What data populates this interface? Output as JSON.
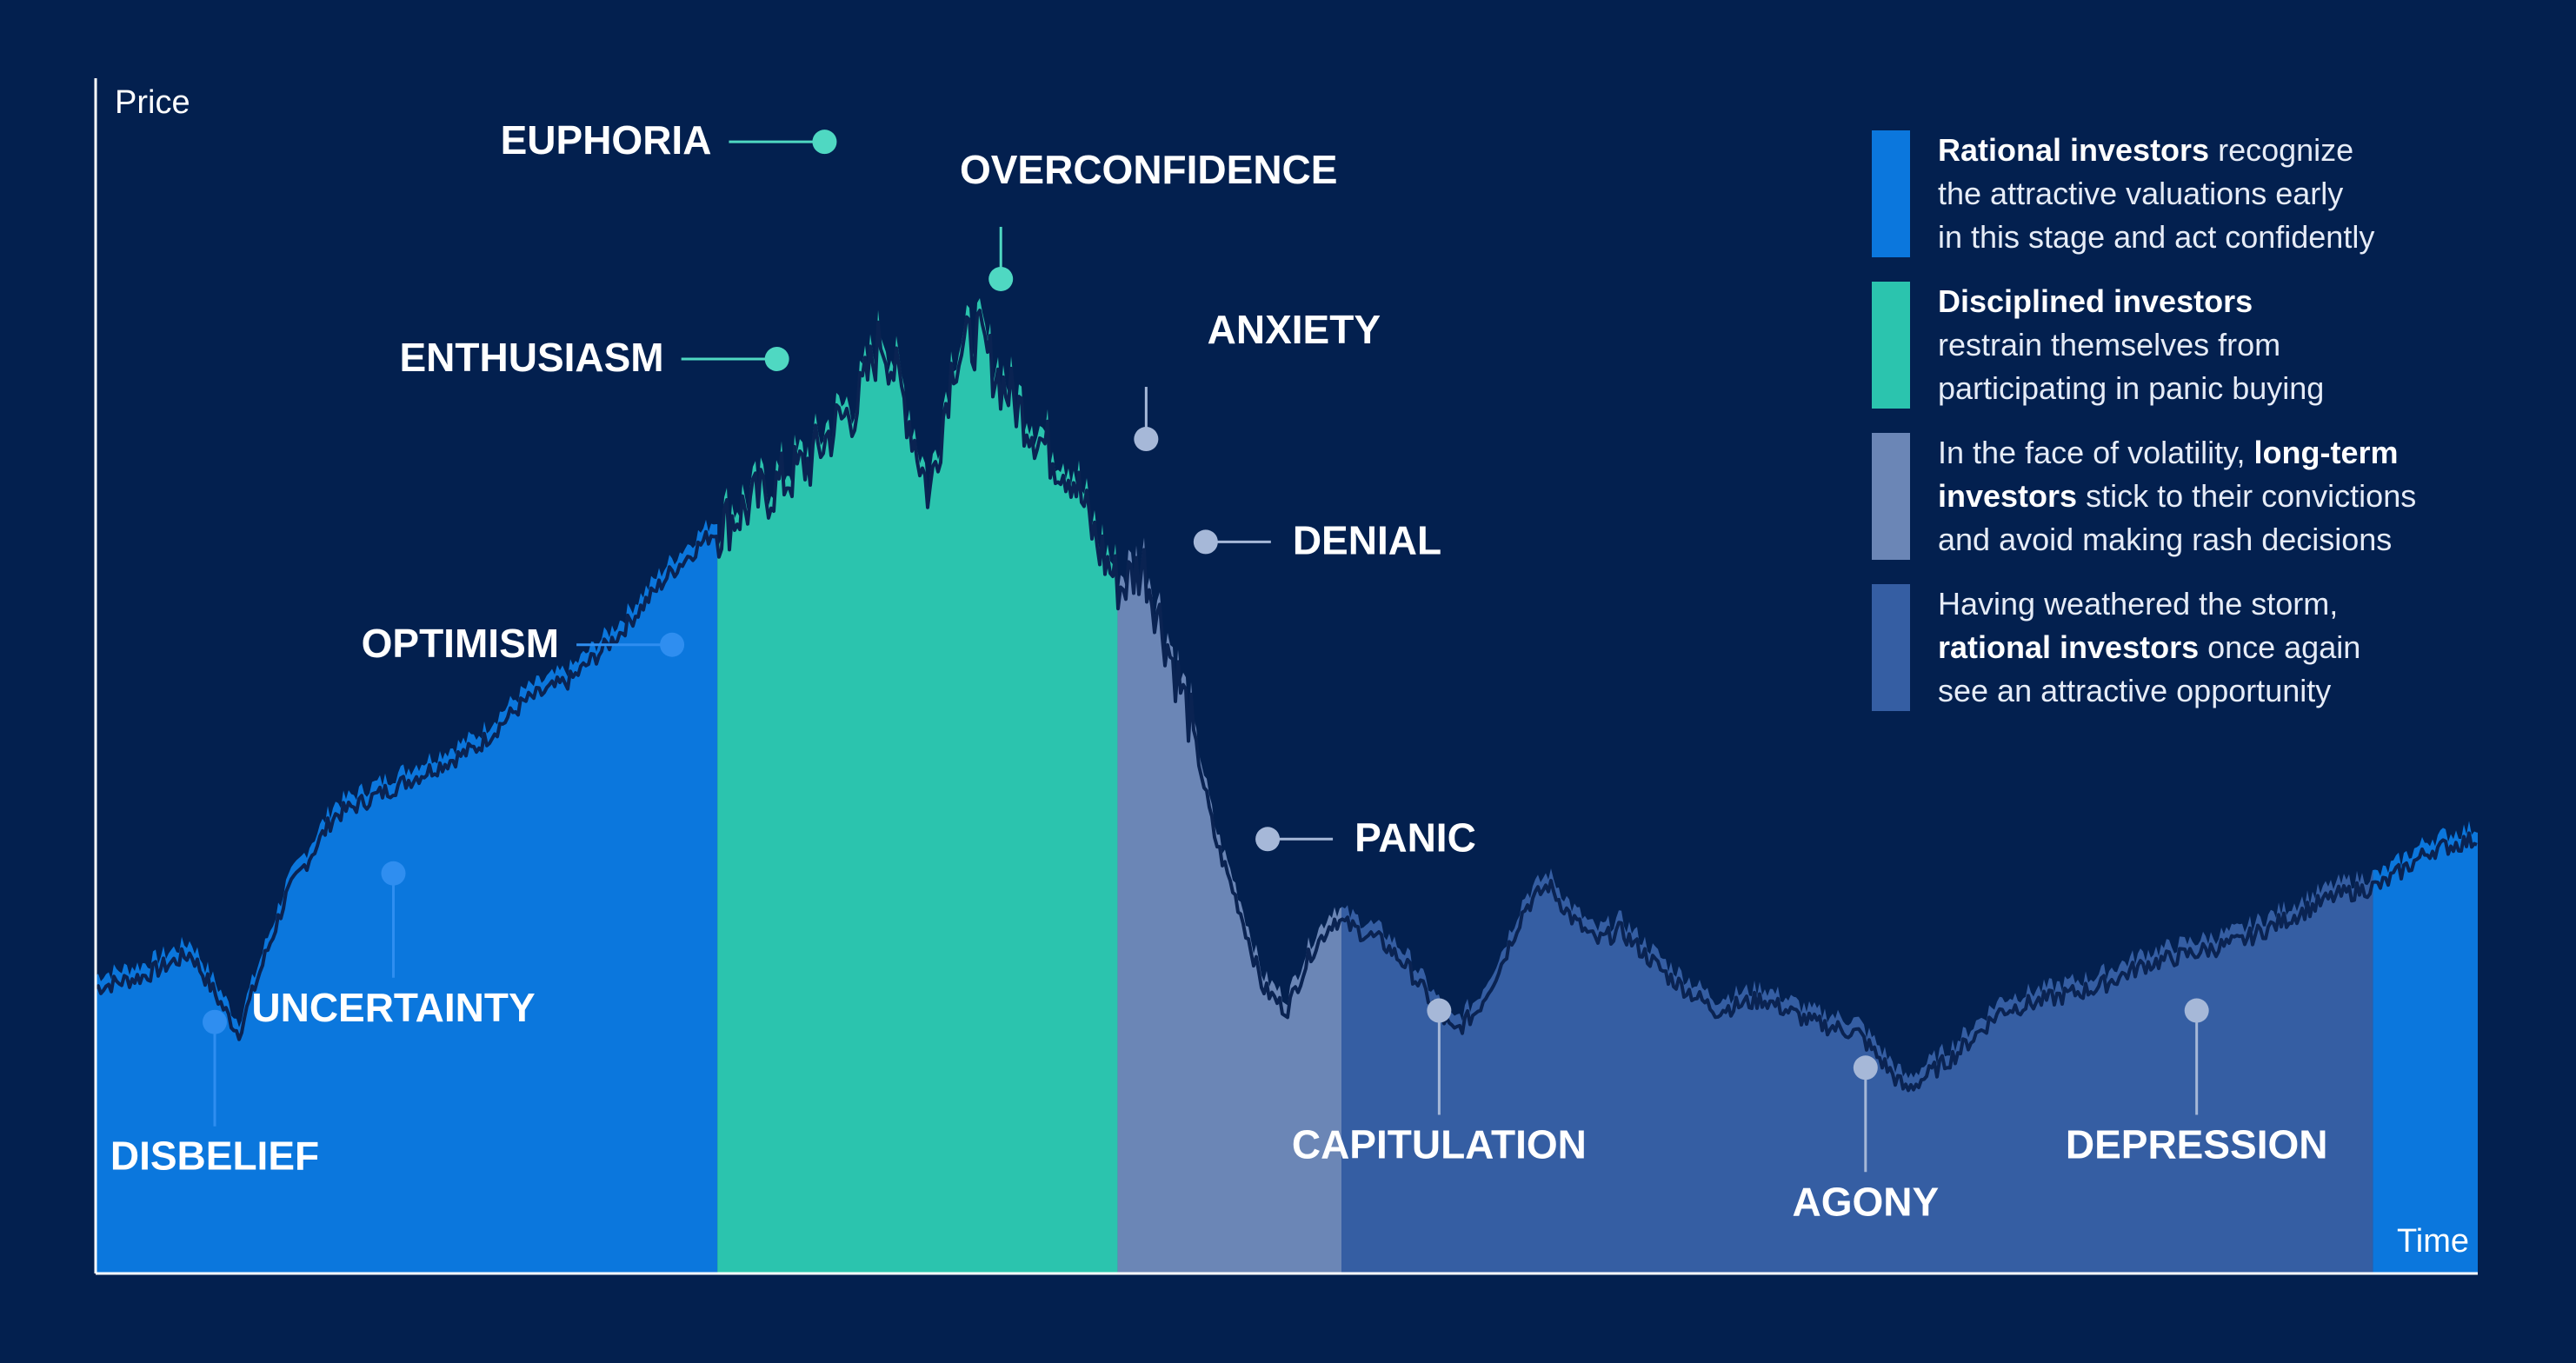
{
  "chart_data": {
    "type": "area",
    "xlabel": "Time",
    "ylabel": "Price",
    "ylim": [
      0,
      100
    ],
    "xlim": [
      0,
      100
    ],
    "grid": false,
    "legend_position": "top-right",
    "phase_colors": {
      "rational": "#0b77dd",
      "disciplined": "#2bc4ae",
      "long_term": "#6b86b6",
      "recovery": "#355ea3"
    },
    "phases": [
      {
        "x0": 0,
        "x1": 26.1,
        "color_key": "rational"
      },
      {
        "x0": 26.1,
        "x1": 42.9,
        "color_key": "disciplined"
      },
      {
        "x0": 42.9,
        "x1": 52.3,
        "color_key": "long_term"
      },
      {
        "x0": 52.3,
        "x1": 95.6,
        "color_key": "recovery"
      },
      {
        "x0": 95.6,
        "x1": 100,
        "color_key": "rational"
      }
    ],
    "series": [
      {
        "x": [
          0,
          2,
          4,
          6,
          8,
          10,
          12,
          14,
          16,
          18,
          20,
          22,
          24,
          26,
          28,
          30,
          31,
          32,
          33,
          34,
          35,
          36,
          37,
          38,
          39,
          40,
          41,
          42,
          43,
          44,
          45,
          46,
          47,
          48,
          49,
          50,
          51,
          52,
          53,
          54,
          55,
          56,
          57,
          58,
          59,
          60,
          61,
          62,
          63,
          64,
          66,
          68,
          70,
          72,
          74,
          76,
          78,
          80,
          82,
          84,
          86,
          88,
          90,
          92,
          94,
          96,
          98,
          100
        ],
        "y": [
          25,
          26,
          28,
          21,
          33,
          40,
          42,
          44,
          46,
          50,
          52,
          56,
          61,
          65,
          68,
          71,
          74,
          76,
          82,
          76,
          68,
          80,
          82,
          78,
          75,
          72,
          70,
          64,
          60,
          62,
          55,
          48,
          38,
          32,
          25,
          23,
          28,
          31,
          30,
          29,
          27,
          24,
          21,
          23,
          27,
          32,
          34,
          31,
          29,
          30,
          26,
          23,
          24,
          22,
          21,
          16,
          19,
          23,
          24,
          25,
          27,
          28,
          29,
          31,
          33,
          34,
          37,
          38
        ]
      }
    ],
    "annotations": [
      {
        "text": "DISBELIEF",
        "x": 5,
        "y": 22,
        "side": "below"
      },
      {
        "text": "UNCERTAINTY",
        "x": 12.5,
        "y": 35,
        "side": "below"
      },
      {
        "text": "OPTIMISM",
        "x": 24.2,
        "y": 55,
        "side": "left"
      },
      {
        "text": "ENTHUSIASM",
        "x": 28.6,
        "y": 80,
        "side": "left"
      },
      {
        "text": "EUPHORIA",
        "x": 30.6,
        "y": 99,
        "side": "left"
      },
      {
        "text": "OVERCONFIDENCE",
        "x": 38,
        "y": 87,
        "side": "above"
      },
      {
        "text": "ANXIETY",
        "x": 44.1,
        "y": 73,
        "side": "above"
      },
      {
        "text": "DENIAL",
        "x": 46.6,
        "y": 64,
        "side": "right"
      },
      {
        "text": "PANIC",
        "x": 49.2,
        "y": 38,
        "side": "right"
      },
      {
        "text": "CAPITULATION",
        "x": 56.4,
        "y": 23,
        "side": "below"
      },
      {
        "text": "AGONY",
        "x": 74.3,
        "y": 18,
        "side": "below"
      },
      {
        "text": "DEPRESSION",
        "x": 88.2,
        "y": 23,
        "side": "below"
      }
    ]
  },
  "legend": [
    {
      "color_key": "rational",
      "bold": "Rational investors",
      "rest": " recognize\nthe attractive valuations early\nin this stage and act confidently"
    },
    {
      "color_key": "disciplined",
      "bold": "Disciplined investors",
      "rest": "\nrestrain themselves from\nparticipating in panic buying"
    },
    {
      "color_key": "long_term",
      "pre": "In the face of volatility, ",
      "bold": "long-term\ninvestors",
      "rest": " stick to their convictions\nand avoid making rash decisions"
    },
    {
      "color_key": "recovery",
      "pre": "Having weathered the storm,\n",
      "bold": "rational investors",
      "rest": " once again\nsee an attractive opportunity"
    }
  ]
}
